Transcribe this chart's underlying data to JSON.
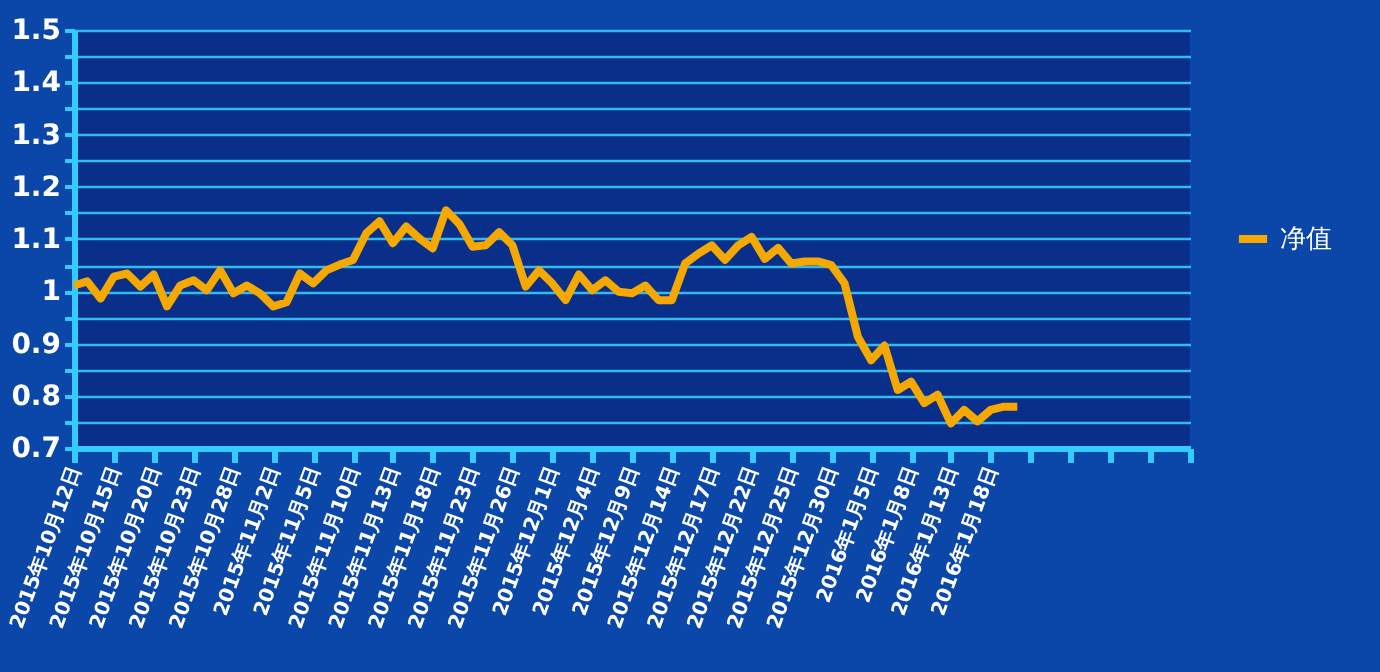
{
  "chart_data": {
    "type": "line",
    "categories": [
      "2015年10月12日",
      null,
      null,
      "2015年10月15日",
      null,
      null,
      "2015年10月20日",
      null,
      null,
      "2015年10月23日",
      null,
      null,
      "2015年10月28日",
      null,
      null,
      "2015年11月2日",
      null,
      null,
      "2015年11月5日",
      null,
      null,
      "2015年11月10日",
      null,
      null,
      "2015年11月13日",
      null,
      null,
      "2015年11月18日",
      null,
      null,
      "2015年11月23日",
      null,
      null,
      "2015年11月26日",
      null,
      null,
      "2015年12月1日",
      null,
      null,
      "2015年12月4日",
      null,
      null,
      "2015年12月9日",
      null,
      null,
      "2015年12月14日",
      null,
      null,
      "2015年12月17日",
      null,
      null,
      "2015年12月22日",
      null,
      null,
      "2015年12月25日",
      null,
      null,
      "2015年12月30日",
      null,
      null,
      "2016年1月5日",
      null,
      null,
      "2016年1月8日",
      null,
      null,
      "2016年1月13日",
      null,
      null,
      "2016年1月18日",
      null,
      null,
      null,
      null,
      null,
      null,
      null,
      null,
      null,
      null,
      null,
      null,
      null,
      null,
      null
    ],
    "series": [
      {
        "name": "净值",
        "color": "#f5a800",
        "values": [
          1.011,
          1.019,
          0.986,
          1.028,
          1.034,
          1.009,
          1.032,
          0.971,
          1.011,
          1.021,
          1.002,
          1.04,
          0.996,
          1.011,
          0.996,
          0.971,
          0.979,
          1.034,
          1.015,
          1.04,
          1.051,
          1.06,
          1.111,
          1.134,
          1.092,
          1.124,
          1.101,
          1.082,
          1.155,
          1.129,
          1.085,
          1.088,
          1.113,
          1.088,
          1.009,
          1.04,
          1.015,
          0.983,
          1.032,
          1.002,
          1.021,
          0.999,
          0.996,
          1.011,
          0.983,
          0.983,
          1.053,
          1.072,
          1.088,
          1.06,
          1.088,
          1.104,
          1.062,
          1.083,
          1.053,
          1.057,
          1.057,
          1.05,
          1.015,
          0.913,
          0.868,
          0.896,
          0.811,
          0.827,
          0.786,
          0.802,
          0.747,
          0.773,
          0.751,
          0.773,
          0.779,
          0.779,
          null,
          null,
          null,
          null,
          null,
          null,
          null,
          null,
          null,
          null,
          null,
          null,
          null
        ]
      }
    ],
    "ylim": [
      0.7,
      1.5
    ],
    "yticks": [
      0.7,
      {
        "value": 0.75,
        "label": null
      },
      0.8,
      {
        "value": 0.85,
        "label": null
      },
      0.9,
      {
        "value": 0.95,
        "label": null
      },
      1,
      {
        "value": 1.05,
        "label": null
      },
      1.1,
      {
        "value": 1.15,
        "label": null
      },
      1.2,
      {
        "value": 1.25,
        "label": null
      },
      1.3,
      {
        "value": 1.35,
        "label": null
      },
      1.4,
      {
        "value": 1.45,
        "label": null
      },
      1.5
    ],
    "grid": "y",
    "legend": "right",
    "marker": "none",
    "line_style": "solid"
  }
}
